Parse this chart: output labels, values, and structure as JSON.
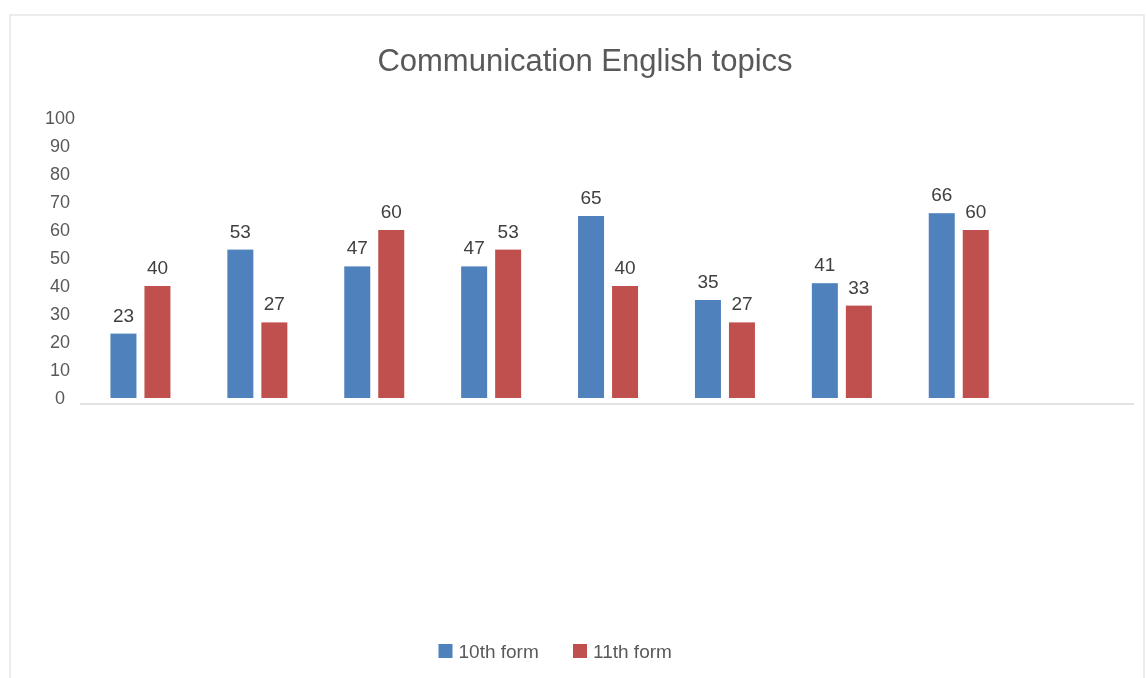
{
  "chart_data": {
    "type": "bar",
    "title": "Communication English topics",
    "categories": [
      null,
      null,
      null,
      null,
      null,
      null,
      null,
      null
    ],
    "series": [
      {
        "name": "10th form",
        "color": "#4f81bd",
        "values": [
          23,
          53,
          47,
          47,
          65,
          35,
          41,
          66
        ]
      },
      {
        "name": "11th form",
        "color": "#c0504d",
        "values": [
          40,
          27,
          60,
          53,
          40,
          27,
          33,
          60
        ]
      }
    ],
    "ylim": [
      0,
      100
    ],
    "yticks": [
      0,
      10,
      20,
      30,
      40,
      50,
      60,
      70,
      80,
      90,
      100
    ],
    "grid": false,
    "legend": "bottom",
    "data_labels": true
  }
}
